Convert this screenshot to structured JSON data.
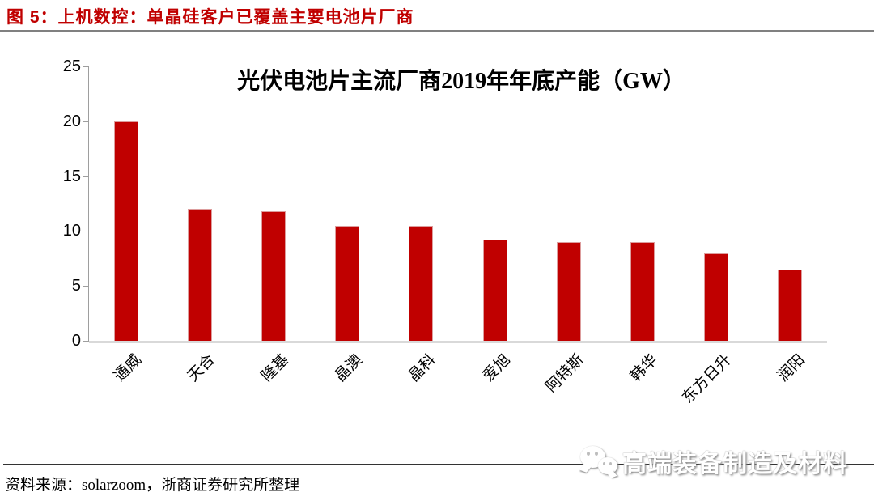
{
  "header": {
    "figure_label": "图 5：",
    "figure_title": "上机数控：单晶硅客户已覆盖主要电池片厂商"
  },
  "footer": {
    "source_text": "资料来源：solarzoom，浙商证券研究所整理",
    "watermark_text": "高端装备制造及材料",
    "watermark_icon": "wechat-icon"
  },
  "colors": {
    "title_red": "#C00000",
    "bar_red": "#C00000",
    "header_rule_gray": "#808080",
    "axis_gray": "#9e9e9e",
    "baseline_gray": "#d9d9d9",
    "footer_rule_dark": "#333333"
  },
  "chart_data": {
    "type": "bar",
    "title": "光伏电池片主流厂商2019年年底产能（GW）",
    "categories": [
      "通威",
      "天合",
      "隆基",
      "晶澳",
      "晶科",
      "爱旭",
      "阿特斯",
      "韩华",
      "东方日升",
      "润阳"
    ],
    "values": [
      20,
      12,
      11.8,
      10.5,
      10.5,
      9.2,
      9,
      9,
      8,
      6.5
    ],
    "unit": "GW",
    "xlabel": "",
    "ylabel": "",
    "ylim": [
      0,
      25
    ],
    "yticks": [
      0,
      5,
      10,
      15,
      20,
      25
    ],
    "grid": false,
    "legend": false,
    "bar_color": "#C00000",
    "x_label_rotation_deg": -45
  }
}
